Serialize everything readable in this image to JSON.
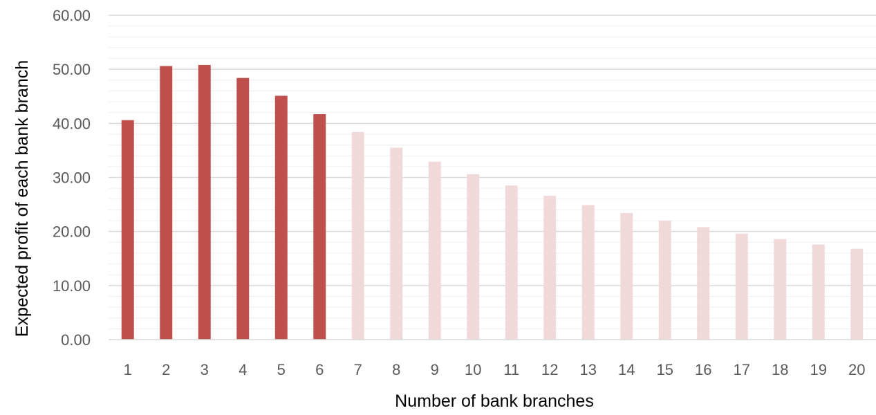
{
  "chart_data": {
    "type": "bar",
    "title": "",
    "xlabel": "Number of bank branches",
    "ylabel": "Expected profit of each bank branch",
    "categories": [
      "1",
      "2",
      "3",
      "4",
      "5",
      "6",
      "7",
      "8",
      "9",
      "10",
      "11",
      "12",
      "13",
      "14",
      "15",
      "16",
      "17",
      "18",
      "19",
      "20"
    ],
    "values": [
      40.6,
      50.6,
      50.8,
      48.4,
      45.1,
      41.7,
      38.4,
      35.5,
      32.9,
      30.6,
      28.5,
      26.6,
      24.9,
      23.4,
      22.0,
      20.8,
      19.6,
      18.6,
      17.6,
      16.8
    ],
    "highlight_count": 6,
    "ylim": [
      0,
      60
    ],
    "y_ticks": [
      "0.00",
      "10.00",
      "20.00",
      "30.00",
      "40.00",
      "50.00",
      "60.00"
    ],
    "y_tick_values": [
      0,
      10,
      20,
      30,
      40,
      50,
      60
    ],
    "minor_grid_step": 2,
    "grid": true,
    "legend": "none",
    "colors": {
      "highlight": "#c0504d",
      "muted": "#f2d9d9",
      "major_grid": "#d9d9d9",
      "minor_grid": "#efefef",
      "axis": "#d9d9d9"
    }
  }
}
